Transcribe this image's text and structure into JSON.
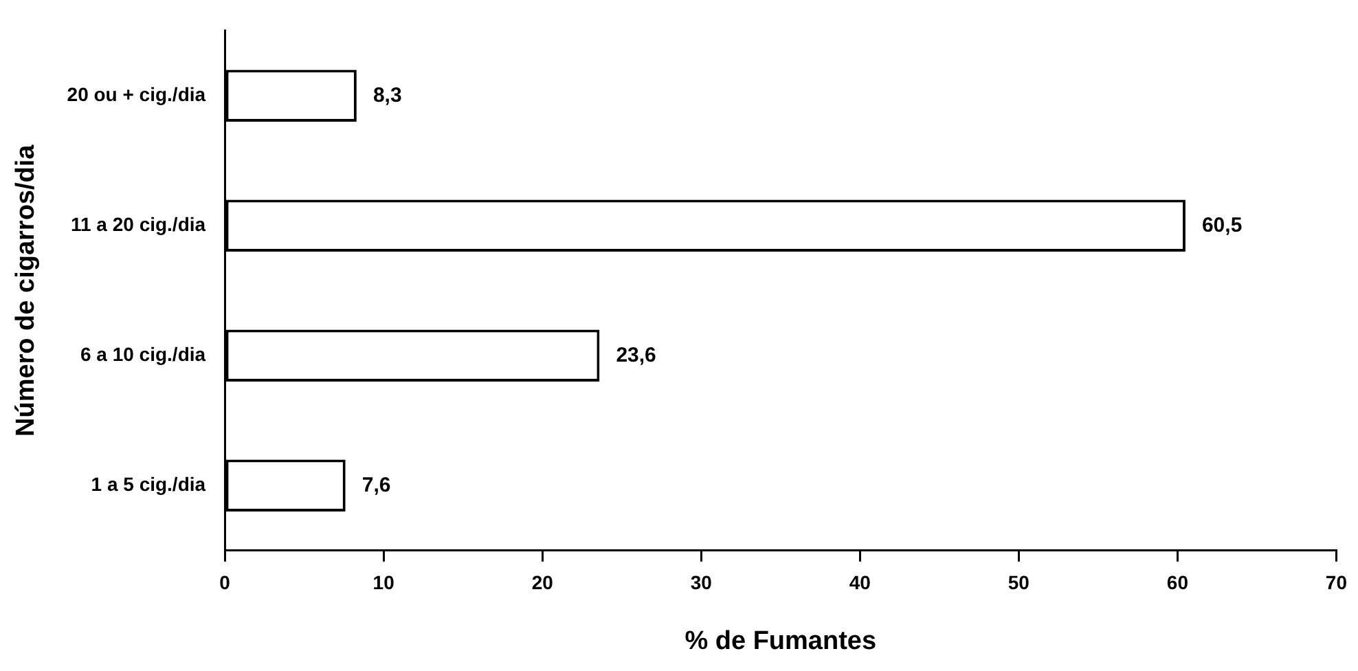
{
  "chart_data": {
    "type": "bar",
    "orientation": "horizontal",
    "xlabel": "% de Fumantes",
    "ylabel": "Número de cigarros/dia",
    "categories": [
      "20 ou + cig./dia",
      "11 a 20 cig./dia",
      "6 a 10 cig./dia",
      "1 a 5 cig./dia"
    ],
    "values": [
      8.3,
      60.5,
      23.6,
      7.6
    ],
    "color": "#ffffff",
    "value_labels": [
      "8,3",
      "60,5",
      "23,6",
      "7,6"
    ],
    "xlim": [
      0,
      70
    ],
    "xticks": [
      0,
      10,
      20,
      30,
      40,
      50,
      60,
      70
    ],
    "grid": false,
    "legend": false
  }
}
